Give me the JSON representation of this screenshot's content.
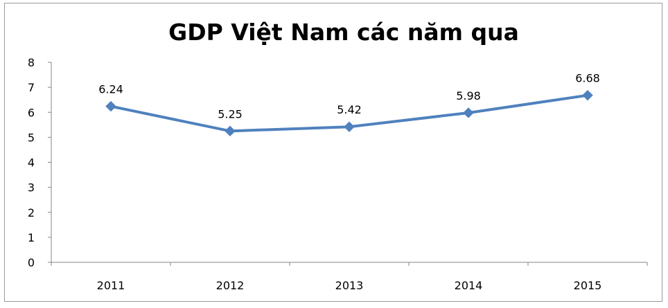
{
  "chart_data": {
    "type": "line",
    "title": "GDP Việt Nam các năm qua",
    "xlabel": "",
    "ylabel": "",
    "categories": [
      "2011",
      "2012",
      "2013",
      "2014",
      "2015"
    ],
    "series": [
      {
        "values": [
          6.24,
          5.25,
          5.42,
          5.98,
          6.68
        ],
        "data_labels": [
          "6.24",
          "5.25",
          "5.42",
          "5.98",
          "6.68"
        ]
      }
    ],
    "y_ticks": [
      "0",
      "1",
      "2",
      "3",
      "4",
      "5",
      "6",
      "7",
      "8"
    ],
    "ylim": [
      0,
      8
    ],
    "grid": false,
    "legend": "none",
    "marker": "diamond",
    "line_color": "#4f81bd"
  }
}
